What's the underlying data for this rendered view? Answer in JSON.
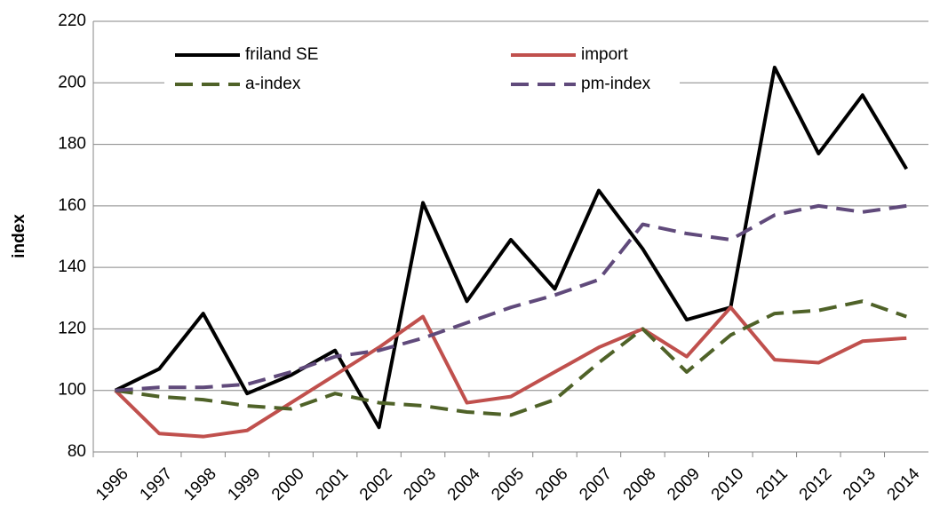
{
  "chart_data": {
    "type": "line",
    "y_label": "index",
    "categories": [
      "1996",
      "1997",
      "1998",
      "1999",
      "2000",
      "2001",
      "2002",
      "2003",
      "2004",
      "2005",
      "2006",
      "2007",
      "2008",
      "2009",
      "2010",
      "2011",
      "2012",
      "2013",
      "2014"
    ],
    "series": [
      {
        "name": "friland SE",
        "color": "#000000",
        "dashed": false,
        "values": [
          100,
          107,
          125,
          99,
          105,
          113,
          88,
          161,
          129,
          149,
          133,
          165,
          146,
          123,
          127,
          205,
          177,
          196,
          172
        ]
      },
      {
        "name": "import",
        "color": "#c0504d",
        "dashed": false,
        "values": [
          100,
          86,
          85,
          87,
          96,
          105,
          114,
          124,
          96,
          98,
          106,
          114,
          120,
          111,
          127,
          110,
          109,
          116,
          117
        ]
      },
      {
        "name": "a-index",
        "color": "#4f6228",
        "dashed": true,
        "values": [
          100,
          98,
          97,
          95,
          94,
          99,
          96,
          95,
          93,
          92,
          97,
          109,
          120,
          106,
          118,
          125,
          126,
          129,
          124
        ]
      },
      {
        "name": "pm-index",
        "color": "#604a7b",
        "dashed": true,
        "values": [
          100,
          101,
          101,
          102,
          106,
          111,
          113,
          117,
          122,
          127,
          131,
          136,
          154,
          151,
          149,
          157,
          160,
          158,
          160
        ]
      }
    ],
    "ylim": [
      80,
      220
    ],
    "yticks": [
      80,
      100,
      120,
      140,
      160,
      180,
      200,
      220
    ],
    "grid": true
  }
}
